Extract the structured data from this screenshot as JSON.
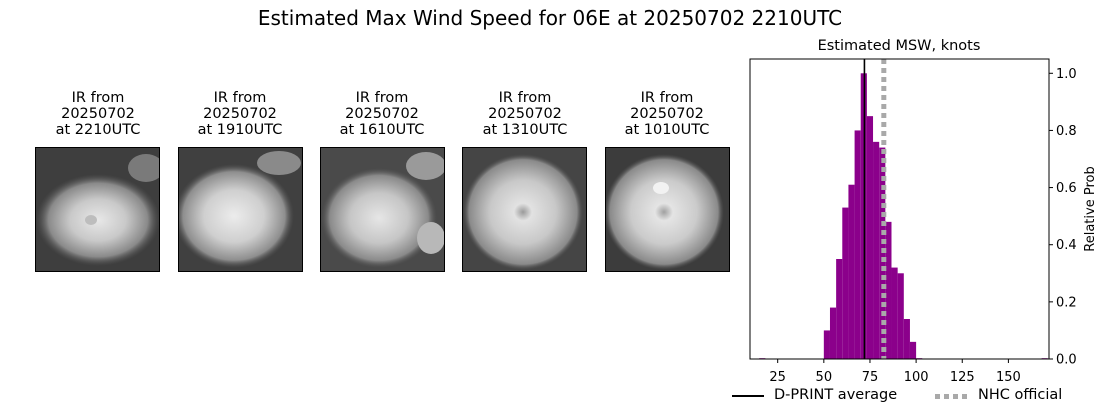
{
  "suptitle": "Estimated Max Wind Speed for 06E at 20250702 2210UTC",
  "ir_panels": [
    {
      "line1": "IR from",
      "line2": "20250702",
      "line3": "at 2210UTC"
    },
    {
      "line1": "IR from",
      "line2": "20250702",
      "line3": "at 1910UTC"
    },
    {
      "line1": "IR from",
      "line2": "20250702",
      "line3": "at 1610UTC"
    },
    {
      "line1": "IR from",
      "line2": "20250702",
      "line3": "at 1310UTC"
    },
    {
      "line1": "IR from",
      "line2": "20250702",
      "line3": "at 1010UTC"
    }
  ],
  "chart_data": {
    "type": "bar",
    "title": "Estimated MSW, knots",
    "xlabel": "",
    "ylabel": "Relative Prob",
    "xlim": [
      10,
      172
    ],
    "ylim": [
      0,
      1.05
    ],
    "xticks": [
      25,
      50,
      75,
      100,
      125,
      150
    ],
    "yticks": [
      0.0,
      0.2,
      0.4,
      0.6,
      0.8,
      1.0
    ],
    "ytick_labels": [
      "0.0",
      "0.2",
      "0.4",
      "0.6",
      "0.8",
      "1.0"
    ],
    "yaxis_side": "right",
    "bar_color": "#8b008b",
    "bin_width": 3.33,
    "bins": [
      {
        "x": 15,
        "value": 0.0
      },
      {
        "x": 50,
        "value": 0.1
      },
      {
        "x": 53.33,
        "value": 0.18
      },
      {
        "x": 56.67,
        "value": 0.35
      },
      {
        "x": 60,
        "value": 0.53
      },
      {
        "x": 63.33,
        "value": 0.61
      },
      {
        "x": 66.67,
        "value": 0.8
      },
      {
        "x": 70,
        "value": 1.0
      },
      {
        "x": 73.33,
        "value": 0.85
      },
      {
        "x": 76.67,
        "value": 0.76
      },
      {
        "x": 80,
        "value": 0.74
      },
      {
        "x": 83.33,
        "value": 0.48
      },
      {
        "x": 86.67,
        "value": 0.32
      },
      {
        "x": 90,
        "value": 0.3
      },
      {
        "x": 93.33,
        "value": 0.14
      },
      {
        "x": 96.67,
        "value": 0.06
      },
      {
        "x": 100,
        "value": 0.0
      },
      {
        "x": 168,
        "value": 0.0
      }
    ],
    "dprint_average": 72,
    "nhc_official": 82.5,
    "legend": [
      {
        "label": "D-PRINT average",
        "style": "solid",
        "color": "#000000"
      },
      {
        "label": "NHC official",
        "style": "dotted",
        "color": "#a9a9a9"
      }
    ],
    "legend_placement": "bottom"
  }
}
